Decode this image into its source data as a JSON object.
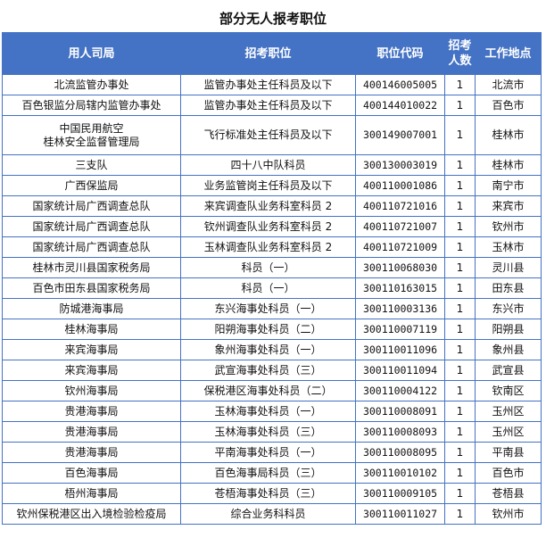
{
  "title": "部分无人报考职位",
  "columns": [
    "用人司局",
    "招考职位",
    "职位代码",
    "招考\n人数",
    "工作地点"
  ],
  "rows": [
    [
      "北流监管办事处",
      "监管办事处主任科员及以下",
      "400146005005",
      "1",
      "北流市"
    ],
    [
      "百色银监分局辖内监管办事处",
      "监管办事处主任科员及以下",
      "400144010022",
      "1",
      "百色市"
    ],
    [
      "中国民用航空\n桂林安全监督管理局",
      "飞行标准处主任科员及以下",
      "300149007001",
      "1",
      "桂林市"
    ],
    [
      "三支队",
      "四十八中队科员",
      "300130003019",
      "1",
      "桂林市"
    ],
    [
      "广西保监局",
      "业务监管岗主任科员及以下",
      "400110001086",
      "1",
      "南宁市"
    ],
    [
      "国家统计局广西调查总队",
      "来宾调查队业务科室科员 2",
      "400110721016",
      "1",
      "来宾市"
    ],
    [
      "国家统计局广西调查总队",
      "钦州调查队业务科室科员 2",
      "400110721007",
      "1",
      "钦州市"
    ],
    [
      "国家统计局广西调查总队",
      "玉林调查队业务科室科员 2",
      "400110721009",
      "1",
      "玉林市"
    ],
    [
      "桂林市灵川县国家税务局",
      "科员（一）",
      "300110068030",
      "1",
      "灵川县"
    ],
    [
      "百色市田东县国家税务局",
      "科员（一）",
      "300110163015",
      "1",
      "田东县"
    ],
    [
      "防城港海事局",
      "东兴海事处科员（一）",
      "300110003136",
      "1",
      "东兴市"
    ],
    [
      "桂林海事局",
      "阳朔海事处科员（二）",
      "300110007119",
      "1",
      "阳朔县"
    ],
    [
      "来宾海事局",
      "象州海事处科员（一）",
      "300110011096",
      "1",
      "象州县"
    ],
    [
      "来宾海事局",
      "武宣海事处科员（三）",
      "300110011094",
      "1",
      "武宣县"
    ],
    [
      "钦州海事局",
      "保税港区海事处科员（二）",
      "300110004122",
      "1",
      "钦南区"
    ],
    [
      "贵港海事局",
      "玉林海事处科员（一）",
      "300110008091",
      "1",
      "玉州区"
    ],
    [
      "贵港海事局",
      "玉林海事处科员（三）",
      "300110008093",
      "1",
      "玉州区"
    ],
    [
      "贵港海事局",
      "平南海事处科员（一）",
      "300110008095",
      "1",
      "平南县"
    ],
    [
      "百色海事局",
      "百色海事局科员（三）",
      "300110010102",
      "1",
      "百色市"
    ],
    [
      "梧州海事局",
      "苍梧海事处科员（三）",
      "300110009105",
      "1",
      "苍梧县"
    ],
    [
      "钦州保税港区出入境检验检疫局",
      "综合业务科科员",
      "300110011027",
      "1",
      "钦州市"
    ]
  ],
  "colors": {
    "header_bg": "#4472c4",
    "border": "#4472c4"
  }
}
